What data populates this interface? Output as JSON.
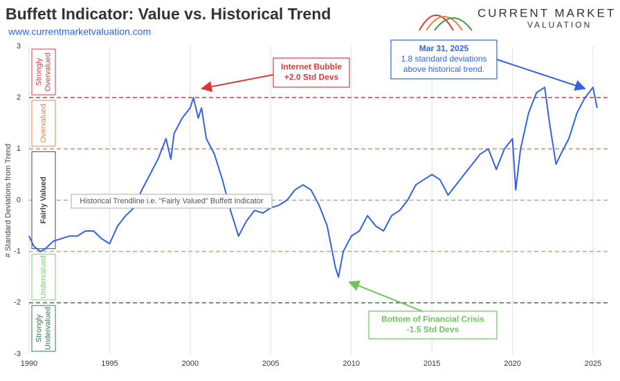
{
  "chart_data": {
    "type": "line",
    "title": "Buffett Indicator: Value vs. Historical Trend",
    "subtitle": "www.currentmarketvaluation.com",
    "brand": [
      "CURRENT MARKET",
      "VALUATION"
    ],
    "y_label": "# Standard Deviations from Trend",
    "xlim": [
      1990,
      2025.9
    ],
    "xticks": [
      1990,
      1995,
      2000,
      2005,
      2010,
      2015,
      2020,
      2025
    ],
    "ylim": [
      -3,
      3
    ],
    "yticks": [
      -3,
      -2,
      -1,
      0,
      1,
      2,
      3
    ],
    "grid": true,
    "color": "#2f62e8",
    "x": [
      1990.0,
      1990.3,
      1990.7,
      1991.0,
      1991.5,
      1992.0,
      1992.5,
      1993.0,
      1993.5,
      1994.0,
      1994.5,
      1995.0,
      1995.5,
      1996.0,
      1996.5,
      1997.0,
      1997.5,
      1998.0,
      1998.5,
      1998.8,
      1999.0,
      1999.5,
      2000.0,
      2000.2,
      2000.5,
      2000.7,
      2001.0,
      2001.5,
      2002.0,
      2002.5,
      2002.8,
      2003.0,
      2003.5,
      2004.0,
      2004.5,
      2005.0,
      2005.5,
      2006.0,
      2006.5,
      2007.0,
      2007.5,
      2008.0,
      2008.5,
      2009.0,
      2009.2,
      2009.5,
      2010.0,
      2010.5,
      2011.0,
      2011.5,
      2012.0,
      2012.5,
      2013.0,
      2013.5,
      2014.0,
      2014.5,
      2015.0,
      2015.5,
      2016.0,
      2016.5,
      2017.0,
      2017.5,
      2018.0,
      2018.5,
      2019.0,
      2019.5,
      2020.0,
      2020.2,
      2020.5,
      2021.0,
      2021.5,
      2022.0,
      2022.3,
      2022.7,
      2023.0,
      2023.5,
      2024.0,
      2024.5,
      2025.0,
      2025.25
    ],
    "values": [
      -0.7,
      -0.9,
      -1.0,
      -0.95,
      -0.8,
      -0.75,
      -0.7,
      -0.7,
      -0.6,
      -0.6,
      -0.75,
      -0.85,
      -0.5,
      -0.3,
      -0.15,
      0.2,
      0.5,
      0.8,
      1.2,
      0.8,
      1.3,
      1.6,
      1.8,
      2.0,
      1.6,
      1.8,
      1.2,
      0.9,
      0.4,
      -0.2,
      -0.5,
      -0.7,
      -0.4,
      -0.2,
      -0.25,
      -0.15,
      -0.1,
      0.0,
      0.2,
      0.3,
      0.2,
      -0.1,
      -0.5,
      -1.3,
      -1.5,
      -1.0,
      -0.7,
      -0.6,
      -0.3,
      -0.5,
      -0.6,
      -0.3,
      -0.2,
      0.0,
      0.3,
      0.4,
      0.5,
      0.4,
      0.1,
      0.3,
      0.5,
      0.7,
      0.9,
      1.0,
      0.6,
      1.0,
      1.2,
      0.2,
      1.0,
      1.7,
      2.1,
      2.2,
      1.5,
      0.7,
      0.9,
      1.2,
      1.7,
      2.0,
      2.2,
      1.8
    ],
    "reference_lines": [
      {
        "value": 2,
        "color": "#d9383a"
      },
      {
        "value": 1,
        "color": "#f07f3c"
      },
      {
        "value": 0,
        "color": "#aaaaaa"
      },
      {
        "value": -1,
        "color": "#7dcf6b"
      },
      {
        "value": -2,
        "color": "#2e7d4f"
      }
    ],
    "zones": [
      {
        "label": [
          "Strongly",
          "Overvalued"
        ],
        "range": [
          2,
          3
        ],
        "color": "#d9383a"
      },
      {
        "label": [
          "Overvalued"
        ],
        "range": [
          1,
          2
        ],
        "color": "#f07f3c"
      },
      {
        "label": [
          "Fairly Valued"
        ],
        "range": [
          -1,
          1
        ],
        "color": "#444444"
      },
      {
        "label": [
          "Undervalued"
        ],
        "range": [
          -2,
          -1
        ],
        "color": "#7dcf6b"
      },
      {
        "label": [
          "Strongly",
          "Undervalued"
        ],
        "range": [
          -3,
          -2
        ],
        "color": "#2e7d4f"
      }
    ],
    "trend_label": "Historical Trendline i.e. \"Fairly Valued\" Buffett Indicator",
    "annotations": [
      {
        "lines": [
          "Internet Bubble",
          "+2.0 Std Devs"
        ],
        "color": "#d9383a"
      },
      {
        "lines": [
          "Mar 31, 2025",
          "1.8 standard deviations",
          "above historical trend."
        ],
        "color": "#2f62e8"
      },
      {
        "lines": [
          "Bottom of Financial Crisis",
          "-1.5 Std Devs"
        ],
        "color": "#6cc45a"
      }
    ]
  }
}
